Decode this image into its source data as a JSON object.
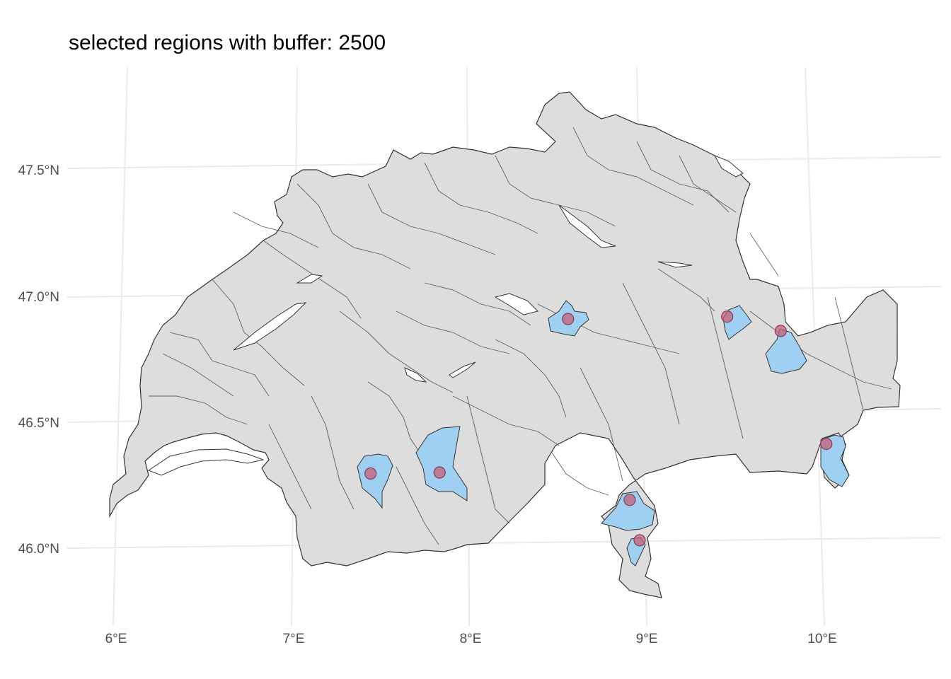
{
  "title": "selected regions with buffer: 2500",
  "colors": {
    "background": "#ffffff",
    "grid": "#ebebeb",
    "land_fill": "#dddddd",
    "border": "#333333",
    "lake_fill": "#ffffff",
    "selected_fill": "#9fd0f2",
    "point_fill": "#c1617a",
    "point_stroke": "#8a3a52"
  },
  "axes": {
    "lon_ticks": [
      "6°E",
      "7°E",
      "8°E",
      "9°E",
      "10°E"
    ],
    "lat_ticks": [
      "47.5°N",
      "47.0°N",
      "46.5°N",
      "46.0°N"
    ]
  },
  "chart_data": {
    "type": "map",
    "projection": "Swiss LV95",
    "lon_range": [
      5.9,
      10.6
    ],
    "lat_range": [
      45.8,
      47.85
    ],
    "buffer": 2500,
    "points": [
      {
        "lon": 8.59,
        "lat": 46.88
      },
      {
        "lon": 9.49,
        "lat": 46.88
      },
      {
        "lon": 9.79,
        "lat": 46.82
      },
      {
        "lon": 7.45,
        "lat": 46.28
      },
      {
        "lon": 7.84,
        "lat": 46.28
      },
      {
        "lon": 10.03,
        "lat": 46.37
      },
      {
        "lon": 8.91,
        "lat": 46.16
      },
      {
        "lon": 8.96,
        "lat": 46.0
      }
    ]
  }
}
